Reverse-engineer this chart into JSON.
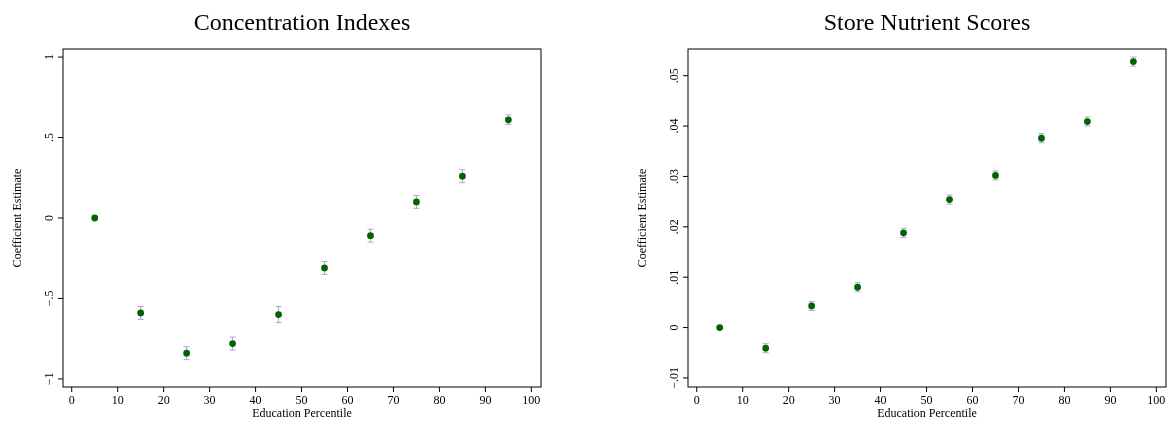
{
  "chart_data": [
    {
      "type": "scatter",
      "title": "Concentration Indexes",
      "xlabel": "Education Percentile",
      "ylabel": "Coefficient Estimate",
      "x": [
        5,
        15,
        25,
        35,
        45,
        55,
        65,
        75,
        85,
        95
      ],
      "series": [
        {
          "color": "#006400",
          "values": [
            0,
            -0.59,
            -0.84,
            -0.78,
            -0.6,
            -0.31,
            -0.11,
            0.1,
            0.26,
            0.61
          ],
          "errors": [
            null,
            0.04,
            0.04,
            0.04,
            0.05,
            0.04,
            0.04,
            0.04,
            0.04,
            0.03
          ]
        }
      ],
      "xlim": [
        -1.9,
        102.1
      ],
      "ylim": [
        -1.05,
        1.05
      ],
      "xticks": [
        0,
        10,
        20,
        30,
        40,
        50,
        60,
        70,
        80,
        90,
        100
      ],
      "yticks": [
        {
          "value": -1,
          "label": "−1"
        },
        {
          "value": -0.5,
          "label": "−.5"
        },
        {
          "value": 0,
          "label": "0"
        },
        {
          "value": 0.5,
          "label": ".5"
        },
        {
          "value": 1,
          "label": "1"
        }
      ],
      "marker": "circle",
      "grid": false
    },
    {
      "type": "scatter",
      "title": "Store Nutrient Scores",
      "xlabel": "Education Percentile",
      "ylabel": "Coefficient Estimate",
      "x": [
        5,
        15,
        25,
        35,
        45,
        55,
        65,
        75,
        85,
        95
      ],
      "series": [
        {
          "color": "#006400",
          "values": [
            0,
            -0.0041,
            0.0043,
            0.008,
            0.0188,
            0.0254,
            0.0302,
            0.0376,
            0.0409,
            0.0528
          ],
          "errors": [
            null,
            0.0009,
            0.0009,
            0.0009,
            0.0009,
            0.0009,
            0.0009,
            0.0009,
            0.0009,
            0.0009
          ]
        }
      ],
      "xlim": [
        -1.9,
        102.1
      ],
      "ylim": [
        -0.0118,
        0.0553
      ],
      "xticks": [
        0,
        10,
        20,
        30,
        40,
        50,
        60,
        70,
        80,
        90,
        100
      ],
      "yticks": [
        {
          "value": -0.01,
          "label": "−.01"
        },
        {
          "value": 0,
          "label": "0"
        },
        {
          "value": 0.01,
          "label": ".01"
        },
        {
          "value": 0.02,
          "label": ".02"
        },
        {
          "value": 0.03,
          "label": ".03"
        },
        {
          "value": 0.04,
          "label": ".04"
        },
        {
          "value": 0.05,
          "label": ".05"
        }
      ],
      "marker": "circle",
      "grid": false
    }
  ]
}
